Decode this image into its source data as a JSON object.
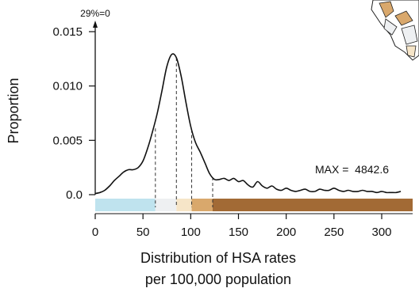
{
  "chart_data": {
    "type": "line",
    "xlabel_line1": "Distribution of HSA rates",
    "xlabel_line2": "per 100,000 population",
    "ylabel": "Proportion",
    "xlim": [
      0,
      330
    ],
    "ylim": [
      0,
      0.015
    ],
    "x_ticks": [
      0,
      50,
      100,
      150,
      200,
      250,
      300
    ],
    "y_ticks": [
      {
        "value": 0.0,
        "label": "0.0"
      },
      {
        "value": 0.005,
        "label": "0.005"
      },
      {
        "value": 0.01,
        "label": "0.010"
      },
      {
        "value": 0.015,
        "label": "0.015"
      }
    ],
    "top_note": "29%=0",
    "max_note": "MAX =  4842.6",
    "series": [
      {
        "x": [
          0,
          5,
          10,
          15,
          20,
          25,
          30,
          35,
          40,
          45,
          50,
          55,
          60,
          65,
          70,
          75,
          80,
          85,
          90,
          95,
          100,
          105,
          110,
          115,
          120,
          125,
          130,
          135,
          140,
          145,
          150,
          155,
          160,
          165,
          170,
          175,
          180,
          185,
          190,
          195,
          200,
          205,
          210,
          215,
          220,
          225,
          230,
          235,
          240,
          245,
          250,
          255,
          260,
          265,
          270,
          275,
          280,
          285,
          290,
          295,
          300,
          305,
          310,
          315,
          320
        ],
        "y": [
          0.0001,
          0.0002,
          0.0004,
          0.0008,
          0.0013,
          0.0017,
          0.0021,
          0.0023,
          0.0023,
          0.0025,
          0.0031,
          0.0043,
          0.0058,
          0.0075,
          0.0096,
          0.0118,
          0.0129,
          0.0126,
          0.0109,
          0.0085,
          0.0063,
          0.0048,
          0.0039,
          0.0029,
          0.0019,
          0.0014,
          0.0014,
          0.0015,
          0.0013,
          0.0015,
          0.0012,
          0.0013,
          0.0009,
          0.0007,
          0.0012,
          0.0008,
          0.0006,
          0.0008,
          0.0005,
          0.0004,
          0.0006,
          0.0004,
          0.0003,
          0.0004,
          0.0005,
          0.0003,
          0.0003,
          0.0005,
          0.0004,
          0.0004,
          0.0006,
          0.0004,
          0.0003,
          0.0004,
          0.0003,
          0.0003,
          0.0004,
          0.0003,
          0.0003,
          0.0002,
          0.0003,
          0.0002,
          0.0002,
          0.0002,
          0.0003
        ]
      }
    ],
    "quantile_cuts": [
      {
        "x": 63,
        "y": 0.0061
      },
      {
        "x": 85,
        "y": 0.0126
      },
      {
        "x": 101,
        "y": 0.006
      },
      {
        "x": 123,
        "y": 0.0016
      }
    ],
    "range_bands": [
      {
        "from": 0,
        "to": 63,
        "color": "#bfe3ee"
      },
      {
        "from": 63,
        "to": 85,
        "color": "#eef0f2"
      },
      {
        "from": 85,
        "to": 101,
        "color": "#f6e5c8"
      },
      {
        "from": 101,
        "to": 123,
        "color": "#d9a86c"
      },
      {
        "from": 123,
        "to": 337,
        "color": "#a26a35"
      }
    ],
    "colors": {
      "line": "#111111",
      "axis": "#111111",
      "dash": "#333333"
    }
  }
}
